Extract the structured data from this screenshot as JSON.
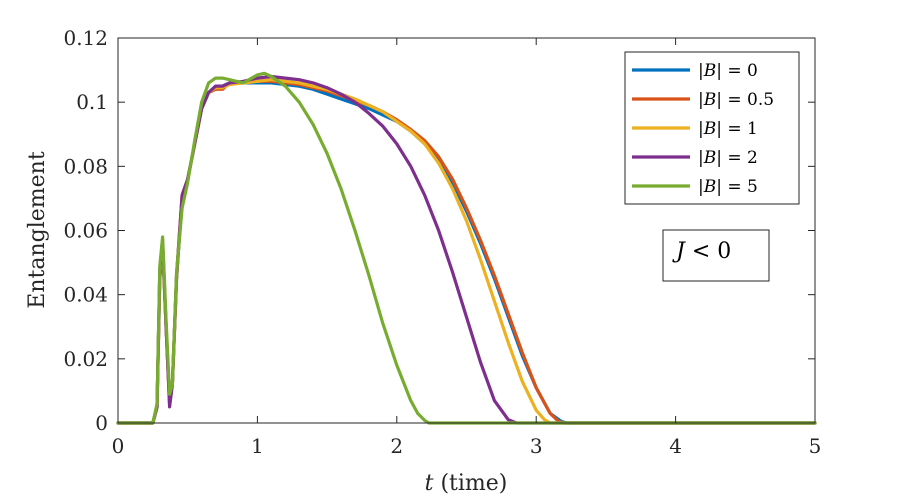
{
  "chart_data": {
    "type": "line",
    "title": "",
    "xlabel_var": "t",
    "xlabel_rest": " (time)",
    "ylabel": "Entanglement",
    "xlim": [
      0,
      5
    ],
    "ylim": [
      0,
      0.12
    ],
    "xticks": [
      0,
      1,
      2,
      3,
      4,
      5
    ],
    "xtick_labels": [
      "0",
      "1",
      "2",
      "3",
      "4",
      "5"
    ],
    "yticks": [
      0,
      0.02,
      0.04,
      0.06,
      0.08,
      0.1,
      0.12
    ],
    "ytick_labels": [
      "0",
      "0.02",
      "0.04",
      "0.06",
      "0.08",
      "0.1",
      "0.12"
    ],
    "grid": false,
    "legend_position": "top-right",
    "annotation_var": "J",
    "annotation_rest": " < 0",
    "series": [
      {
        "name": "|B| = 0",
        "name_var": "B",
        "name_value": "0",
        "color": "#0072BD",
        "x": [
          0,
          0.25,
          0.28,
          0.3,
          0.32,
          0.345,
          0.37,
          0.39,
          0.42,
          0.46,
          0.5,
          0.55,
          0.6,
          0.65,
          0.7,
          0.75,
          0.8,
          0.9,
          1.0,
          1.1,
          1.2,
          1.3,
          1.4,
          1.5,
          1.6,
          1.7,
          1.8,
          1.9,
          2.0,
          2.1,
          2.2,
          2.3,
          2.4,
          2.5,
          2.6,
          2.7,
          2.8,
          2.9,
          3.0,
          3.1,
          3.18,
          3.22,
          3.3,
          4,
          5
        ],
        "y": [
          0,
          0,
          0.005,
          0.045,
          0.055,
          0.03,
          0.007,
          0.012,
          0.045,
          0.07,
          0.076,
          0.087,
          0.098,
          0.103,
          0.105,
          0.105,
          0.106,
          0.106,
          0.106,
          0.106,
          0.1055,
          0.105,
          0.104,
          0.1025,
          0.101,
          0.0995,
          0.098,
          0.096,
          0.094,
          0.091,
          0.087,
          0.082,
          0.075,
          0.066,
          0.056,
          0.045,
          0.033,
          0.021,
          0.011,
          0.003,
          0.0005,
          0,
          0,
          0,
          0
        ]
      },
      {
        "name": "|B| = 0.5",
        "name_var": "B",
        "name_value": "0.5",
        "color": "#D95319",
        "x": [
          0,
          0.25,
          0.28,
          0.3,
          0.32,
          0.345,
          0.37,
          0.39,
          0.42,
          0.46,
          0.5,
          0.55,
          0.6,
          0.65,
          0.7,
          0.75,
          0.8,
          0.9,
          1.0,
          1.1,
          1.2,
          1.3,
          1.4,
          1.5,
          1.6,
          1.7,
          1.8,
          1.9,
          2.0,
          2.1,
          2.2,
          2.3,
          2.4,
          2.5,
          2.6,
          2.7,
          2.8,
          2.9,
          3.0,
          3.1,
          3.16,
          3.2,
          3.3,
          4,
          5
        ],
        "y": [
          0,
          0,
          0.005,
          0.046,
          0.056,
          0.03,
          0.006,
          0.012,
          0.045,
          0.071,
          0.076,
          0.087,
          0.098,
          0.103,
          0.104,
          0.104,
          0.106,
          0.106,
          0.1065,
          0.1065,
          0.106,
          0.1055,
          0.1045,
          0.1035,
          0.102,
          0.1005,
          0.099,
          0.097,
          0.0945,
          0.0915,
          0.088,
          0.083,
          0.076,
          0.067,
          0.057,
          0.046,
          0.034,
          0.022,
          0.011,
          0.003,
          0.0005,
          0,
          0,
          0,
          0
        ]
      },
      {
        "name": "|B| = 1",
        "name_var": "B",
        "name_value": "1",
        "color": "#EDB120",
        "x": [
          0,
          0.25,
          0.28,
          0.3,
          0.32,
          0.345,
          0.37,
          0.39,
          0.42,
          0.46,
          0.5,
          0.55,
          0.6,
          0.65,
          0.7,
          0.75,
          0.8,
          0.9,
          1.0,
          1.1,
          1.2,
          1.3,
          1.4,
          1.5,
          1.6,
          1.7,
          1.8,
          1.9,
          2.0,
          2.1,
          2.2,
          2.3,
          2.4,
          2.5,
          2.6,
          2.7,
          2.8,
          2.9,
          3.0,
          3.06,
          3.1,
          3.2,
          4,
          5
        ],
        "y": [
          0,
          0,
          0.005,
          0.047,
          0.056,
          0.03,
          0.006,
          0.012,
          0.046,
          0.071,
          0.076,
          0.087,
          0.098,
          0.103,
          0.1045,
          0.1045,
          0.1055,
          0.106,
          0.1065,
          0.107,
          0.1065,
          0.106,
          0.105,
          0.104,
          0.1025,
          0.101,
          0.099,
          0.097,
          0.094,
          0.091,
          0.087,
          0.081,
          0.073,
          0.063,
          0.051,
          0.038,
          0.025,
          0.013,
          0.004,
          0.001,
          0,
          0,
          0,
          0
        ]
      },
      {
        "name": "|B| = 2",
        "name_var": "B",
        "name_value": "2",
        "color": "#7E2F8E",
        "x": [
          0,
          0.25,
          0.28,
          0.3,
          0.32,
          0.345,
          0.37,
          0.39,
          0.42,
          0.46,
          0.5,
          0.55,
          0.6,
          0.65,
          0.7,
          0.75,
          0.8,
          0.9,
          1.0,
          1.1,
          1.2,
          1.3,
          1.4,
          1.5,
          1.6,
          1.7,
          1.8,
          1.9,
          2.0,
          2.1,
          2.2,
          2.3,
          2.4,
          2.5,
          2.6,
          2.7,
          2.8,
          2.86,
          2.9,
          3.0,
          4,
          5
        ],
        "y": [
          0,
          0,
          0.005,
          0.048,
          0.057,
          0.03,
          0.005,
          0.012,
          0.046,
          0.071,
          0.076,
          0.087,
          0.098,
          0.103,
          0.105,
          0.105,
          0.106,
          0.1065,
          0.1075,
          0.108,
          0.1075,
          0.107,
          0.106,
          0.1045,
          0.1025,
          0.1,
          0.0965,
          0.0925,
          0.087,
          0.08,
          0.071,
          0.06,
          0.047,
          0.033,
          0.019,
          0.007,
          0.001,
          0,
          0,
          0,
          0,
          0
        ]
      },
      {
        "name": "|B| = 5",
        "name_var": "B",
        "name_value": "5",
        "color": "#77AC30",
        "x": [
          0,
          0.25,
          0.28,
          0.3,
          0.32,
          0.345,
          0.37,
          0.39,
          0.42,
          0.46,
          0.5,
          0.55,
          0.6,
          0.65,
          0.7,
          0.75,
          0.8,
          0.9,
          1.0,
          1.05,
          1.1,
          1.2,
          1.3,
          1.4,
          1.5,
          1.6,
          1.7,
          1.8,
          1.9,
          2.0,
          2.1,
          2.15,
          2.2,
          2.23,
          2.25,
          3,
          4,
          5
        ],
        "y": [
          0,
          0,
          0.006,
          0.049,
          0.058,
          0.032,
          0.009,
          0.012,
          0.047,
          0.067,
          0.075,
          0.088,
          0.1,
          0.106,
          0.1075,
          0.1075,
          0.107,
          0.106,
          0.1085,
          0.109,
          0.108,
          0.105,
          0.1,
          0.093,
          0.084,
          0.073,
          0.06,
          0.046,
          0.031,
          0.018,
          0.007,
          0.003,
          0.0008,
          0,
          0,
          0,
          0,
          0
        ]
      }
    ]
  }
}
